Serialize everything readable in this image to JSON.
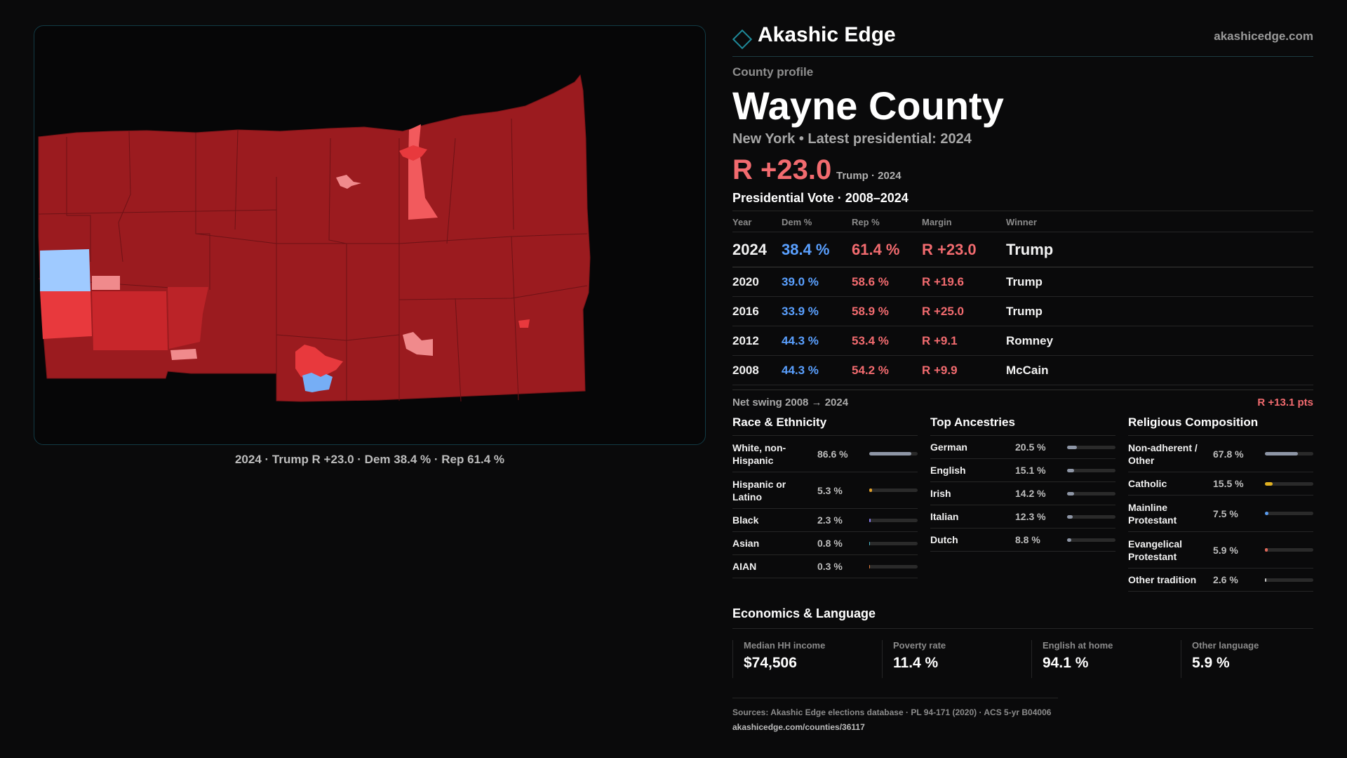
{
  "brand": {
    "name": "Akashic Edge",
    "site": "akashicedge.com",
    "accent": "#1f8a9a"
  },
  "map": {
    "caption": "2024 · Trump R +23.0 · Dem 38.4 % · Rep 61.4 %",
    "colors": {
      "safe_rep": "#9b1b1f",
      "lean_rep": "#f25a5d",
      "tilt_rep": "#f08a8c",
      "dem": "#76aef5",
      "light_dem": "#9fcaff"
    }
  },
  "profile": {
    "eyebrow": "County profile",
    "title": "Wayne County",
    "subtitle": "New York  • Latest presidential: 2024",
    "margin": "R +23.0",
    "margin_note": "Trump · 2024"
  },
  "votes": {
    "title": "Presidential Vote · 2008–2024",
    "headers": {
      "year": "Year",
      "dem": "Dem %",
      "rep": "Rep %",
      "margin": "Margin",
      "winner": "Winner"
    },
    "rows": [
      {
        "year": "2024",
        "dem": "38.4 %",
        "rep": "61.4 %",
        "margin": "R +23.0",
        "winner": "Trump"
      },
      {
        "year": "2020",
        "dem": "39.0 %",
        "rep": "58.6 %",
        "margin": "R +19.6",
        "winner": "Trump"
      },
      {
        "year": "2016",
        "dem": "33.9 %",
        "rep": "58.9 %",
        "margin": "R +25.0",
        "winner": "Trump"
      },
      {
        "year": "2012",
        "dem": "44.3 %",
        "rep": "53.4 %",
        "margin": "R +9.1",
        "winner": "Romney"
      },
      {
        "year": "2008",
        "dem": "44.3 %",
        "rep": "54.2 %",
        "margin": "R +9.9",
        "winner": "McCain"
      }
    ],
    "swing_label": "Net swing 2008 → 2024",
    "swing_value": "R +13.1 pts"
  },
  "race": {
    "title": "Race & Ethnicity",
    "items": [
      {
        "label": "White, non-Hispanic",
        "value": "86.6 %",
        "pct": 86.6,
        "color": "#8e96a6"
      },
      {
        "label": "Hispanic or Latino",
        "value": "5.3 %",
        "pct": 5.3,
        "color": "#e0a02a"
      },
      {
        "label": "Black",
        "value": "2.3 %",
        "pct": 2.3,
        "color": "#8a7cf0"
      },
      {
        "label": "Asian",
        "value": "0.8 %",
        "pct": 0.8,
        "color": "#49b6c8"
      },
      {
        "label": "AIAN",
        "value": "0.3 %",
        "pct": 0.3,
        "color": "#e07a3a"
      }
    ]
  },
  "ancestry": {
    "title": "Top Ancestries",
    "items": [
      {
        "label": "German",
        "value": "20.5 %",
        "pct": 20.5,
        "color": "#8e96a6"
      },
      {
        "label": "English",
        "value": "15.1 %",
        "pct": 15.1,
        "color": "#8e96a6"
      },
      {
        "label": "Irish",
        "value": "14.2 %",
        "pct": 14.2,
        "color": "#8e96a6"
      },
      {
        "label": "Italian",
        "value": "12.3 %",
        "pct": 12.3,
        "color": "#8e96a6"
      },
      {
        "label": "Dutch",
        "value": "8.8 %",
        "pct": 8.8,
        "color": "#8e96a6"
      }
    ]
  },
  "religion": {
    "title": "Religious Composition",
    "items": [
      {
        "label": "Non-adherent / Other",
        "value": "67.8 %",
        "pct": 67.8,
        "color": "#8e96a6"
      },
      {
        "label": "Catholic",
        "value": "15.5 %",
        "pct": 15.5,
        "color": "#e0b020"
      },
      {
        "label": "Mainline Protestant",
        "value": "7.5 %",
        "pct": 7.5,
        "color": "#5a9cf0"
      },
      {
        "label": "Evangelical Protestant",
        "value": "5.9 %",
        "pct": 5.9,
        "color": "#e0685a"
      },
      {
        "label": "Other tradition",
        "value": "2.6 %",
        "pct": 2.6,
        "color": "#c8c8c8"
      }
    ]
  },
  "economics": {
    "title": "Economics & Language",
    "items": [
      {
        "label": "Median HH income",
        "value": "$74,506"
      },
      {
        "label": "Poverty rate",
        "value": "11.4 %"
      },
      {
        "label": "English at home",
        "value": "94.1 %"
      },
      {
        "label": "Other language",
        "value": "5.9 %"
      }
    ]
  },
  "sources": {
    "text": "Sources: Akashic Edge elections database · PL 94-171 (2020) · ACS 5-yr B04006",
    "url": "akashicedge.com/counties/36117"
  }
}
